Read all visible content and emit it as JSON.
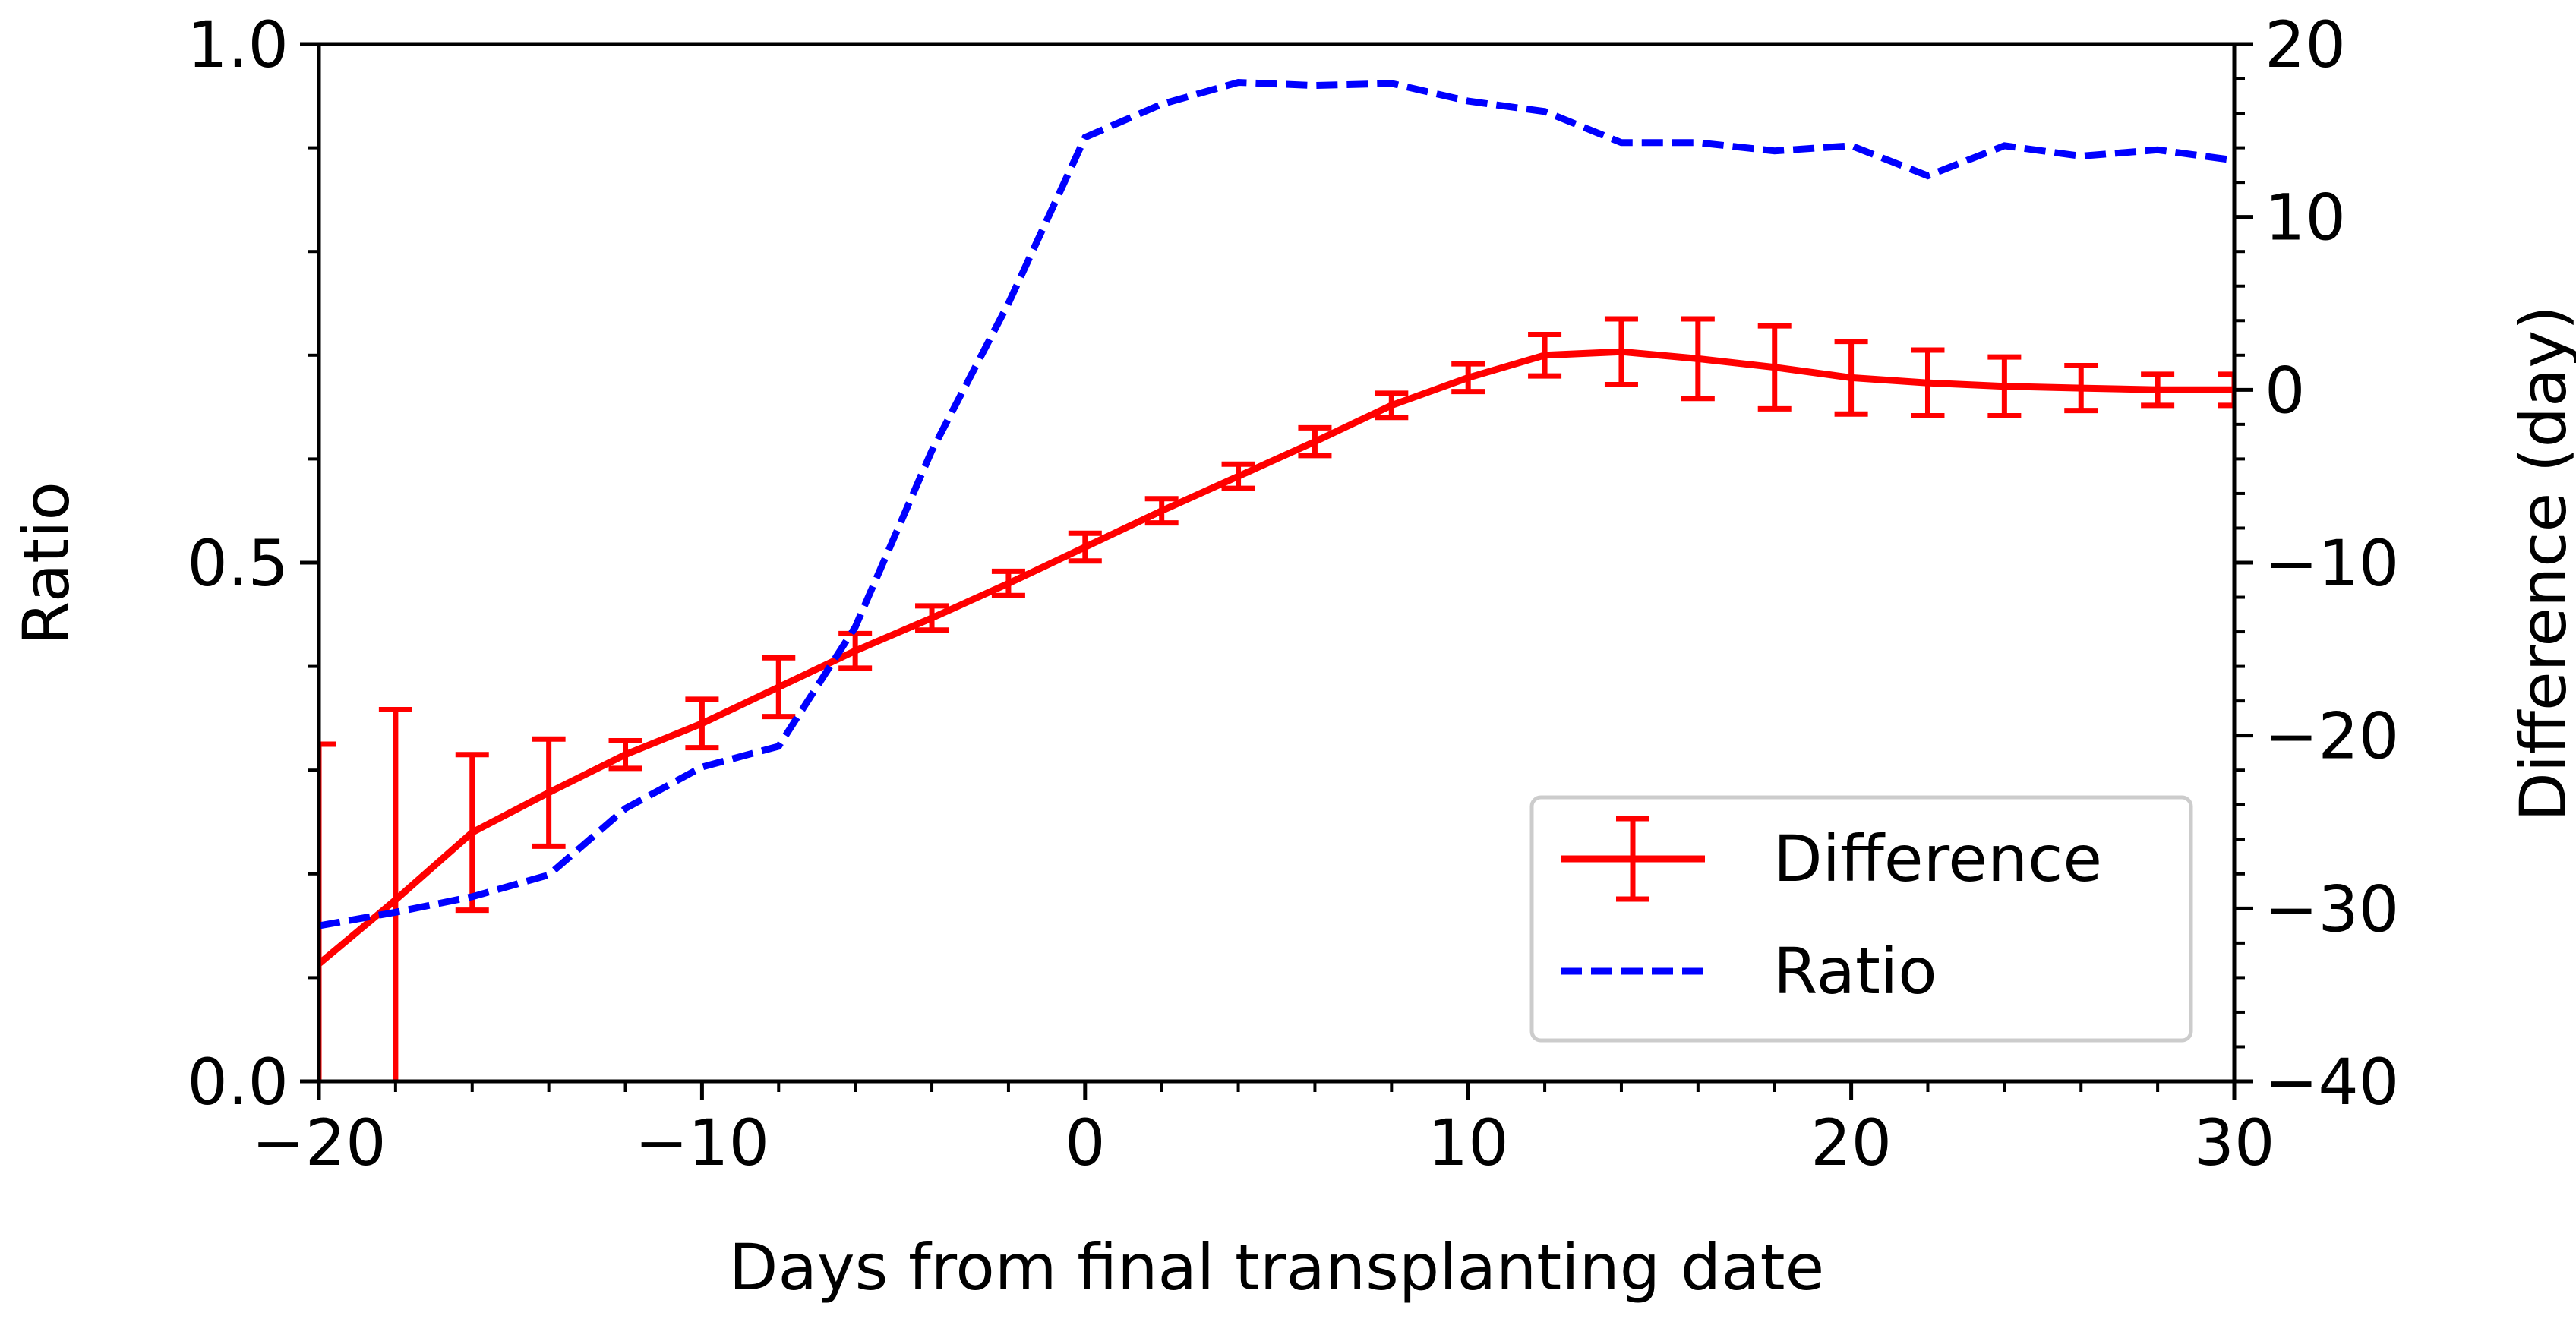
{
  "chart_data": {
    "type": "line",
    "xlabel": "Days from final transplanting date",
    "ylabel_left": "Ratio",
    "ylabel_right": "Difference (day)",
    "xlim": [
      -20,
      30
    ],
    "ylim_left": [
      0.0,
      1.0
    ],
    "ylim_right": [
      -40,
      20
    ],
    "x_ticks": [
      -20,
      -10,
      0,
      10,
      20,
      30
    ],
    "x_tick_labels": [
      "−20",
      "−10",
      "0",
      "10",
      "20",
      "30"
    ],
    "y_left_ticks": [
      0.0,
      0.5,
      1.0
    ],
    "y_left_tick_labels": [
      "0.0",
      "0.5",
      "1.0"
    ],
    "y_right_ticks": [
      -40,
      -30,
      -20,
      -10,
      0,
      10,
      20
    ],
    "y_right_tick_labels": [
      "−40",
      "−30",
      "−20",
      "−10",
      "0",
      "10",
      "20"
    ],
    "legend": {
      "position": "lower-right",
      "entries": [
        "Difference",
        "Ratio"
      ]
    },
    "series": [
      {
        "name": "Difference",
        "axis": "right",
        "style": "solid-errorbar",
        "color": "#ff0000",
        "x": [
          -20,
          -18,
          -16,
          -14,
          -12,
          -10,
          -8,
          -6,
          -4,
          -2,
          0,
          2,
          4,
          6,
          8,
          10,
          12,
          14,
          16,
          18,
          20,
          22,
          24,
          26,
          28,
          30
        ],
        "y": [
          -33.2,
          -29.5,
          -25.6,
          -23.3,
          -21.1,
          -19.3,
          -17.2,
          -15.1,
          -13.2,
          -11.2,
          -9.1,
          -7.0,
          -5.0,
          -3.0,
          -0.9,
          0.7,
          2.0,
          2.2,
          1.8,
          1.3,
          0.7,
          0.4,
          0.2,
          0.1,
          0.0,
          0.0
        ],
        "err": [
          12.7,
          11.0,
          4.5,
          3.1,
          0.8,
          1.4,
          1.7,
          1.0,
          0.7,
          0.7,
          0.8,
          0.7,
          0.7,
          0.8,
          0.7,
          0.8,
          1.2,
          1.9,
          2.3,
          2.4,
          2.1,
          1.9,
          1.7,
          1.3,
          0.9,
          0.9
        ]
      },
      {
        "name": "Ratio",
        "axis": "left",
        "style": "dashed",
        "color": "#0000ff",
        "x": [
          -20,
          -18,
          -16,
          -14,
          -12,
          -10,
          -8,
          -6,
          -4,
          -2,
          0,
          2,
          4,
          6,
          8,
          10,
          12,
          14,
          16,
          18,
          20,
          22,
          24,
          26,
          28,
          30
        ],
        "y": [
          0.15,
          0.163,
          0.178,
          0.199,
          0.263,
          0.303,
          0.323,
          0.438,
          0.608,
          0.75,
          0.91,
          0.942,
          0.963,
          0.96,
          0.962,
          0.945,
          0.935,
          0.905,
          0.905,
          0.897,
          0.902,
          0.873,
          0.902,
          0.892,
          0.898,
          0.888
        ]
      }
    ]
  }
}
